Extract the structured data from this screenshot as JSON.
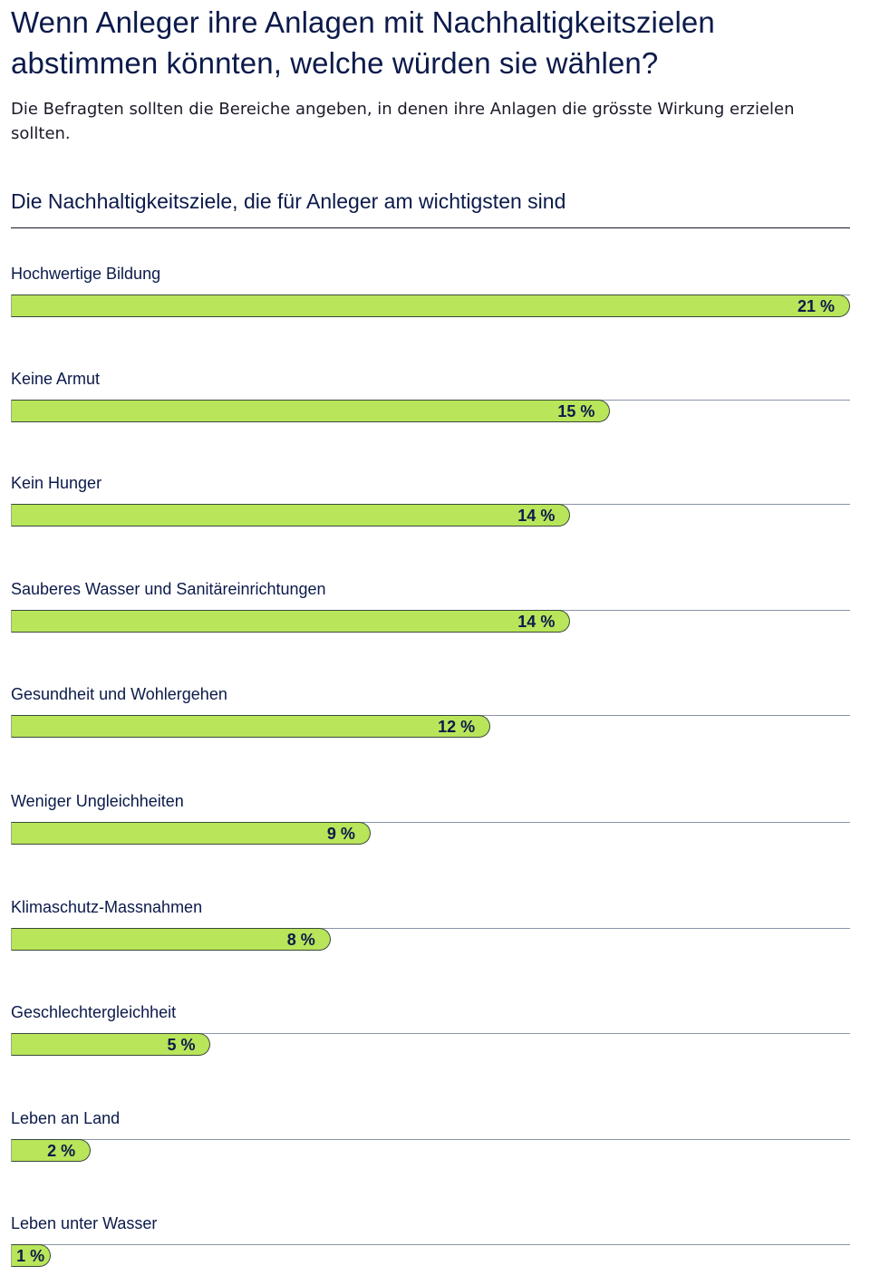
{
  "header": {
    "title": "Wenn Anleger ihre Anlagen mit Nachhaltigkeitszielen abstimmen könnten, welche würden sie wählen?",
    "subtitle": "Die Befragten sollten die Bereiche angeben, in denen ihre Anlagen die grösste Wirkung erzielen sollten."
  },
  "colors": {
    "bar_fill": "#b8e55a",
    "text": "#0b1a4a"
  },
  "chart_data": {
    "type": "bar",
    "orientation": "horizontal",
    "title": "Die Nachhaltigkeitsziele, die für Anleger am wichtigsten sind",
    "xlabel": "",
    "ylabel": "",
    "unit": "%",
    "xlim": [
      0,
      21
    ],
    "categories": [
      "Hochwertige Bildung",
      "Keine Armut",
      "Kein Hunger",
      "Sauberes Wasser und Sanitäreinrichtungen",
      "Gesundheit und Wohlergehen",
      "Weniger Ungleichheiten",
      "Klimaschutz-Massnahmen",
      "Geschlechtergleichheit",
      "Leben an Land",
      "Leben unter Wasser"
    ],
    "values": [
      21,
      15,
      14,
      14,
      12,
      9,
      8,
      5,
      2,
      1
    ],
    "value_labels": [
      "21 %",
      "15 %",
      "14 %",
      "14 %",
      "12 %",
      "9 %",
      "8 %",
      "5 %",
      "2 %",
      "1 %"
    ]
  }
}
